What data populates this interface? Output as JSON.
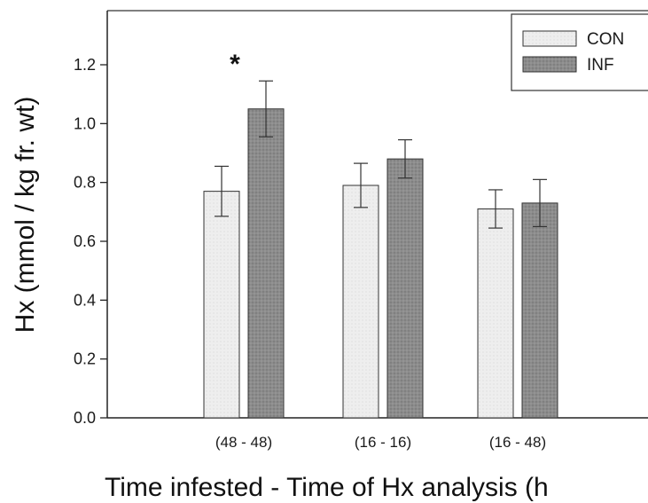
{
  "chart_data": {
    "type": "bar",
    "title": "",
    "xlabel": "Time infested - Time of Hx analysis (h",
    "ylabel": "Hx (mmol / kg fr. wt)",
    "ylim": [
      0,
      1.4
    ],
    "yticks": [
      "0.0",
      "0.2",
      "0.4",
      "0.6",
      "0.8",
      "1.0",
      "1.2"
    ],
    "categories": [
      "(48 - 48)",
      "(16 - 16)",
      "(16 - 48)"
    ],
    "series": [
      {
        "name": "CON",
        "values": [
          0.77,
          0.79,
          0.71
        ],
        "errors": [
          0.085,
          0.075,
          0.065
        ],
        "color": "#ececec"
      },
      {
        "name": "INF",
        "values": [
          1.05,
          0.88,
          0.73
        ],
        "errors": [
          0.095,
          0.065,
          0.08
        ],
        "color": "#8a8a8a"
      }
    ],
    "annotations": [
      {
        "category": 0,
        "series": 1,
        "text": "*"
      }
    ],
    "legend_position": "top-right",
    "grid": false
  }
}
